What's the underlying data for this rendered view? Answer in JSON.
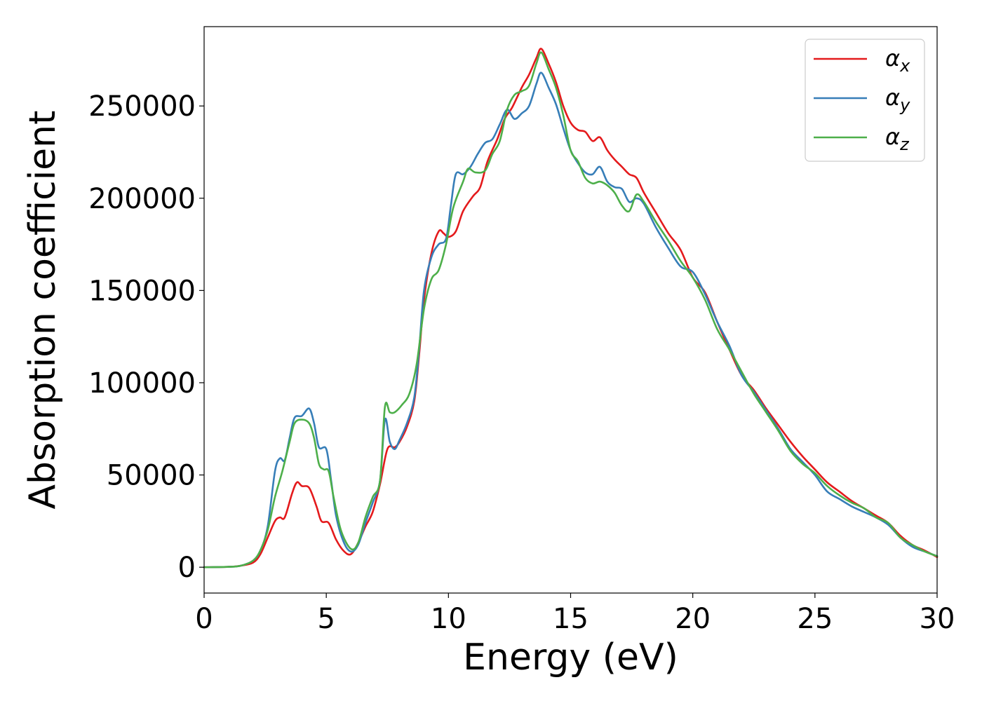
{
  "chart_data": {
    "type": "line",
    "title": "",
    "xlabel": "Energy (eV)",
    "ylabel": "Absorption coefficient",
    "xlim": [
      0,
      30
    ],
    "ylim": [
      -14000,
      293000
    ],
    "xticks": [
      0,
      5,
      10,
      15,
      20,
      25,
      30
    ],
    "xtick_labels": [
      "0",
      "5",
      "10",
      "15",
      "20",
      "25",
      "30"
    ],
    "yticks": [
      0,
      50000,
      100000,
      150000,
      200000,
      250000
    ],
    "ytick_labels": [
      "0",
      "50000",
      "100000",
      "150000",
      "200000",
      "250000"
    ],
    "grid": false,
    "legend_position": "top-right",
    "series": [
      {
        "name": "αx",
        "symbol": "α",
        "subscript": "x",
        "color": "#e41a1c",
        "points": [
          [
            0,
            0
          ],
          [
            1,
            200
          ],
          [
            1.5,
            800
          ],
          [
            2,
            2500
          ],
          [
            2.3,
            7000
          ],
          [
            2.6,
            16000
          ],
          [
            2.9,
            25000
          ],
          [
            3.1,
            27000
          ],
          [
            3.3,
            27000
          ],
          [
            3.6,
            40000
          ],
          [
            3.8,
            46000
          ],
          [
            4.0,
            44000
          ],
          [
            4.3,
            43000
          ],
          [
            4.6,
            33000
          ],
          [
            4.8,
            25000
          ],
          [
            5.1,
            24000
          ],
          [
            5.4,
            15000
          ],
          [
            5.7,
            9000
          ],
          [
            6.0,
            7000
          ],
          [
            6.3,
            13000
          ],
          [
            6.6,
            22000
          ],
          [
            6.9,
            30000
          ],
          [
            7.2,
            45000
          ],
          [
            7.5,
            64000
          ],
          [
            7.8,
            65000
          ],
          [
            8.0,
            68000
          ],
          [
            8.3,
            76000
          ],
          [
            8.6,
            90000
          ],
          [
            8.8,
            115000
          ],
          [
            9.0,
            145000
          ],
          [
            9.3,
            170000
          ],
          [
            9.6,
            182000
          ],
          [
            9.8,
            181000
          ],
          [
            10.0,
            179000
          ],
          [
            10.3,
            182000
          ],
          [
            10.6,
            193000
          ],
          [
            11.0,
            201000
          ],
          [
            11.3,
            206000
          ],
          [
            11.6,
            220000
          ],
          [
            12.0,
            232000
          ],
          [
            12.3,
            243000
          ],
          [
            12.6,
            249000
          ],
          [
            13.0,
            260000
          ],
          [
            13.3,
            267000
          ],
          [
            13.6,
            276000
          ],
          [
            13.8,
            281000
          ],
          [
            14.1,
            273000
          ],
          [
            14.4,
            263000
          ],
          [
            14.7,
            250000
          ],
          [
            15.0,
            241000
          ],
          [
            15.3,
            237000
          ],
          [
            15.6,
            236000
          ],
          [
            15.9,
            231000
          ],
          [
            16.2,
            233000
          ],
          [
            16.5,
            226000
          ],
          [
            16.8,
            221000
          ],
          [
            17.1,
            217000
          ],
          [
            17.4,
            213000
          ],
          [
            17.7,
            211000
          ],
          [
            18.0,
            203000
          ],
          [
            18.5,
            192000
          ],
          [
            19.0,
            181000
          ],
          [
            19.5,
            172000
          ],
          [
            20.0,
            157000
          ],
          [
            20.5,
            149000
          ],
          [
            21.0,
            133000
          ],
          [
            21.5,
            118000
          ],
          [
            22.0,
            104000
          ],
          [
            22.5,
            96000
          ],
          [
            23.0,
            86000
          ],
          [
            23.5,
            77000
          ],
          [
            24.0,
            68000
          ],
          [
            24.5,
            60000
          ],
          [
            25.0,
            53000
          ],
          [
            25.5,
            46000
          ],
          [
            26.0,
            41000
          ],
          [
            26.5,
            36000
          ],
          [
            27.0,
            32000
          ],
          [
            27.5,
            28000
          ],
          [
            28.0,
            24000
          ],
          [
            28.5,
            17000
          ],
          [
            29.0,
            12000
          ],
          [
            29.5,
            9000
          ],
          [
            30.0,
            5500
          ]
        ]
      },
      {
        "name": "αy",
        "symbol": "α",
        "subscript": "y",
        "color": "#377eb8",
        "points": [
          [
            0,
            0
          ],
          [
            1,
            200
          ],
          [
            1.5,
            800
          ],
          [
            2,
            3500
          ],
          [
            2.3,
            9000
          ],
          [
            2.6,
            22000
          ],
          [
            2.9,
            52000
          ],
          [
            3.1,
            59000
          ],
          [
            3.3,
            58000
          ],
          [
            3.5,
            70000
          ],
          [
            3.7,
            81000
          ],
          [
            4.0,
            82000
          ],
          [
            4.3,
            86000
          ],
          [
            4.5,
            78000
          ],
          [
            4.7,
            65000
          ],
          [
            5.0,
            64000
          ],
          [
            5.2,
            47000
          ],
          [
            5.4,
            28000
          ],
          [
            5.7,
            14000
          ],
          [
            6.0,
            8500
          ],
          [
            6.3,
            12000
          ],
          [
            6.6,
            24000
          ],
          [
            6.9,
            35000
          ],
          [
            7.2,
            47000
          ],
          [
            7.4,
            80000
          ],
          [
            7.6,
            68000
          ],
          [
            7.8,
            64000
          ],
          [
            8.0,
            69000
          ],
          [
            8.3,
            78000
          ],
          [
            8.6,
            92000
          ],
          [
            8.8,
            118000
          ],
          [
            9.0,
            150000
          ],
          [
            9.3,
            168000
          ],
          [
            9.6,
            175000
          ],
          [
            9.9,
            178000
          ],
          [
            10.1,
            196000
          ],
          [
            10.3,
            213000
          ],
          [
            10.6,
            213000
          ],
          [
            10.9,
            217000
          ],
          [
            11.2,
            224000
          ],
          [
            11.5,
            230000
          ],
          [
            11.8,
            232000
          ],
          [
            12.1,
            240000
          ],
          [
            12.4,
            248000
          ],
          [
            12.7,
            243000
          ],
          [
            13.0,
            246000
          ],
          [
            13.3,
            250000
          ],
          [
            13.6,
            262000
          ],
          [
            13.8,
            268000
          ],
          [
            14.1,
            260000
          ],
          [
            14.4,
            251000
          ],
          [
            14.7,
            238000
          ],
          [
            15.0,
            226000
          ],
          [
            15.3,
            219000
          ],
          [
            15.6,
            214000
          ],
          [
            15.9,
            213000
          ],
          [
            16.2,
            217000
          ],
          [
            16.5,
            209000
          ],
          [
            16.8,
            206000
          ],
          [
            17.1,
            205000
          ],
          [
            17.4,
            198000
          ],
          [
            17.7,
            200000
          ],
          [
            18.0,
            197000
          ],
          [
            18.5,
            184000
          ],
          [
            19.0,
            173000
          ],
          [
            19.5,
            163000
          ],
          [
            20.0,
            160000
          ],
          [
            20.5,
            148000
          ],
          [
            21.0,
            133000
          ],
          [
            21.5,
            120000
          ],
          [
            22.0,
            104000
          ],
          [
            22.5,
            95000
          ],
          [
            23.0,
            85000
          ],
          [
            23.5,
            75000
          ],
          [
            24.0,
            64000
          ],
          [
            24.5,
            57000
          ],
          [
            25.0,
            50000
          ],
          [
            25.5,
            41000
          ],
          [
            26.0,
            37000
          ],
          [
            26.5,
            33000
          ],
          [
            27.0,
            30000
          ],
          [
            27.5,
            27000
          ],
          [
            28.0,
            23000
          ],
          [
            28.5,
            16000
          ],
          [
            29.0,
            11000
          ],
          [
            29.5,
            8500
          ],
          [
            30.0,
            6000
          ]
        ]
      },
      {
        "name": "αz",
        "symbol": "α",
        "subscript": "z",
        "color": "#4daf4a",
        "points": [
          [
            0,
            0
          ],
          [
            1,
            200
          ],
          [
            1.5,
            800
          ],
          [
            2,
            3500
          ],
          [
            2.3,
            9000
          ],
          [
            2.6,
            20000
          ],
          [
            2.9,
            38000
          ],
          [
            3.2,
            52000
          ],
          [
            3.5,
            68000
          ],
          [
            3.7,
            78000
          ],
          [
            4.0,
            80000
          ],
          [
            4.3,
            78000
          ],
          [
            4.5,
            70000
          ],
          [
            4.7,
            56000
          ],
          [
            4.9,
            53000
          ],
          [
            5.1,
            52000
          ],
          [
            5.3,
            38000
          ],
          [
            5.6,
            20000
          ],
          [
            6.0,
            10000
          ],
          [
            6.3,
            13000
          ],
          [
            6.6,
            27000
          ],
          [
            6.9,
            38000
          ],
          [
            7.2,
            47000
          ],
          [
            7.4,
            87000
          ],
          [
            7.6,
            84000
          ],
          [
            7.8,
            84000
          ],
          [
            8.1,
            88000
          ],
          [
            8.4,
            94000
          ],
          [
            8.7,
            110000
          ],
          [
            9.0,
            140000
          ],
          [
            9.3,
            156000
          ],
          [
            9.6,
            161000
          ],
          [
            9.9,
            175000
          ],
          [
            10.2,
            195000
          ],
          [
            10.6,
            209000
          ],
          [
            10.8,
            216000
          ],
          [
            11.1,
            214000
          ],
          [
            11.5,
            215000
          ],
          [
            11.8,
            224000
          ],
          [
            12.1,
            231000
          ],
          [
            12.4,
            248000
          ],
          [
            12.7,
            256000
          ],
          [
            13.0,
            258000
          ],
          [
            13.3,
            261000
          ],
          [
            13.6,
            273000
          ],
          [
            13.8,
            279000
          ],
          [
            14.1,
            270000
          ],
          [
            14.4,
            260000
          ],
          [
            14.7,
            245000
          ],
          [
            15.0,
            226000
          ],
          [
            15.3,
            220000
          ],
          [
            15.6,
            211000
          ],
          [
            15.9,
            208000
          ],
          [
            16.2,
            209000
          ],
          [
            16.5,
            207000
          ],
          [
            16.8,
            203000
          ],
          [
            17.1,
            196000
          ],
          [
            17.4,
            193000
          ],
          [
            17.7,
            202000
          ],
          [
            18.0,
            198000
          ],
          [
            18.5,
            187000
          ],
          [
            19.0,
            177000
          ],
          [
            19.5,
            166000
          ],
          [
            20.0,
            157000
          ],
          [
            20.5,
            145000
          ],
          [
            21.0,
            129000
          ],
          [
            21.5,
            118000
          ],
          [
            22.0,
            106000
          ],
          [
            22.5,
            94000
          ],
          [
            23.0,
            84000
          ],
          [
            23.5,
            74000
          ],
          [
            24.0,
            63000
          ],
          [
            24.5,
            56000
          ],
          [
            25.0,
            51000
          ],
          [
            25.5,
            44000
          ],
          [
            26.0,
            39000
          ],
          [
            26.5,
            35000
          ],
          [
            27.0,
            32000
          ],
          [
            27.5,
            27000
          ],
          [
            28.0,
            24000
          ],
          [
            28.5,
            16000
          ],
          [
            29.0,
            12000
          ],
          [
            29.5,
            8500
          ],
          [
            30.0,
            6000
          ]
        ]
      }
    ]
  }
}
